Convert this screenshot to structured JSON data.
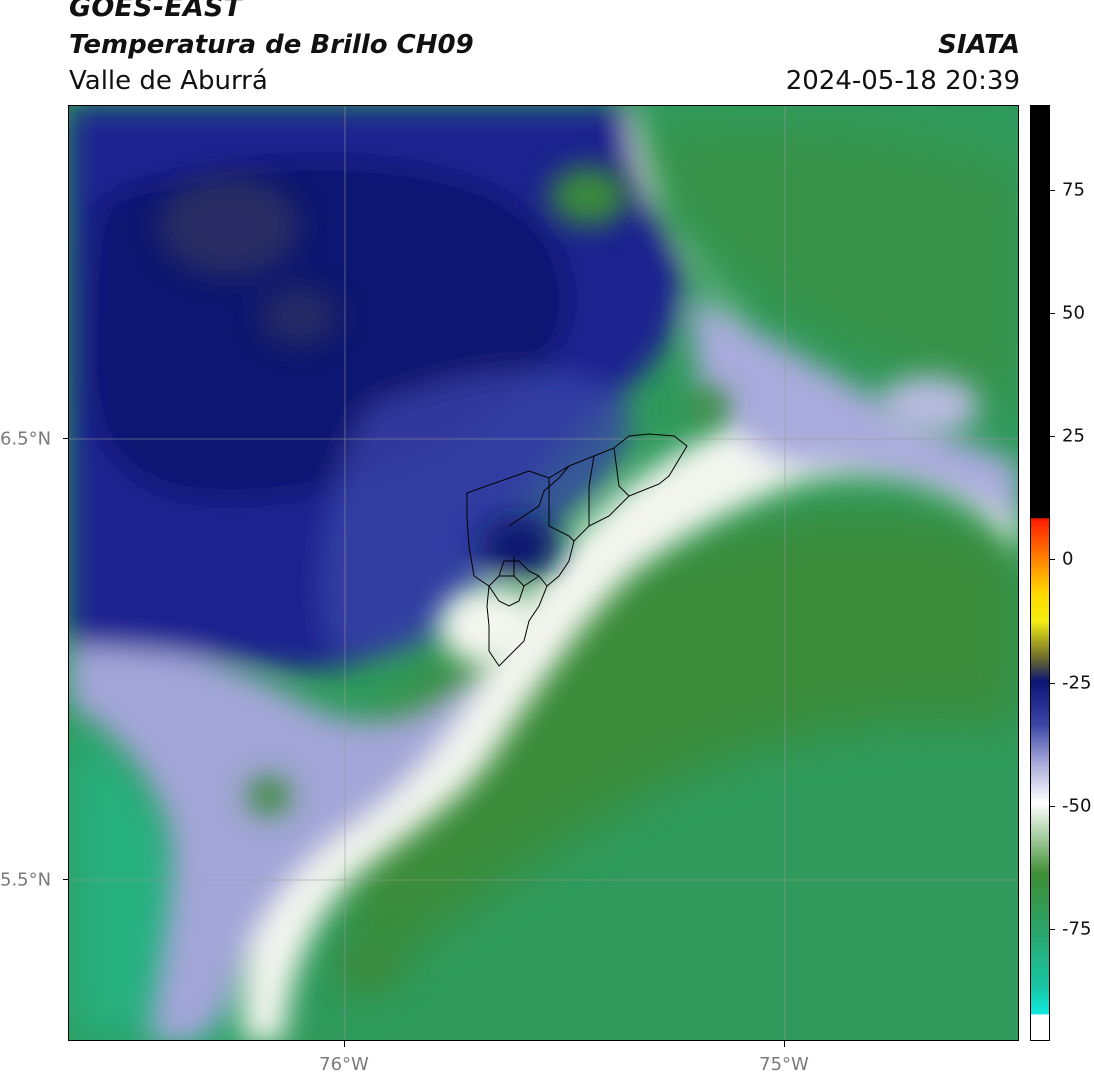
{
  "header": {
    "satellite": "GOES-EAST",
    "product": "Temperatura de Brillo CH09",
    "region": "Valle de Aburrá",
    "brand": "SIATA",
    "timestamp": "2024-05-18 20:39"
  },
  "map": {
    "lat_labels": [
      "6.5°N",
      "5.5°N"
    ],
    "lon_labels": [
      "76°W",
      "75°W"
    ],
    "gridlines": true,
    "boundary_overlay": "municipality outlines (black)"
  },
  "colorbar": {
    "ticks": [
      "75",
      "50",
      "25",
      "0",
      "-25",
      "-50",
      "-75"
    ],
    "colors": {
      "cyan": "#10e8e0",
      "teal": "#2aa46a",
      "green": "#3e8e34",
      "white": "#ffffff",
      "lavender": "#8a8ed0",
      "navy": "#0c1478",
      "olive": "#8a8a30",
      "yellow": "#ffe600",
      "orange": "#ff9000",
      "red": "#ff2400",
      "black": "#000000"
    }
  }
}
